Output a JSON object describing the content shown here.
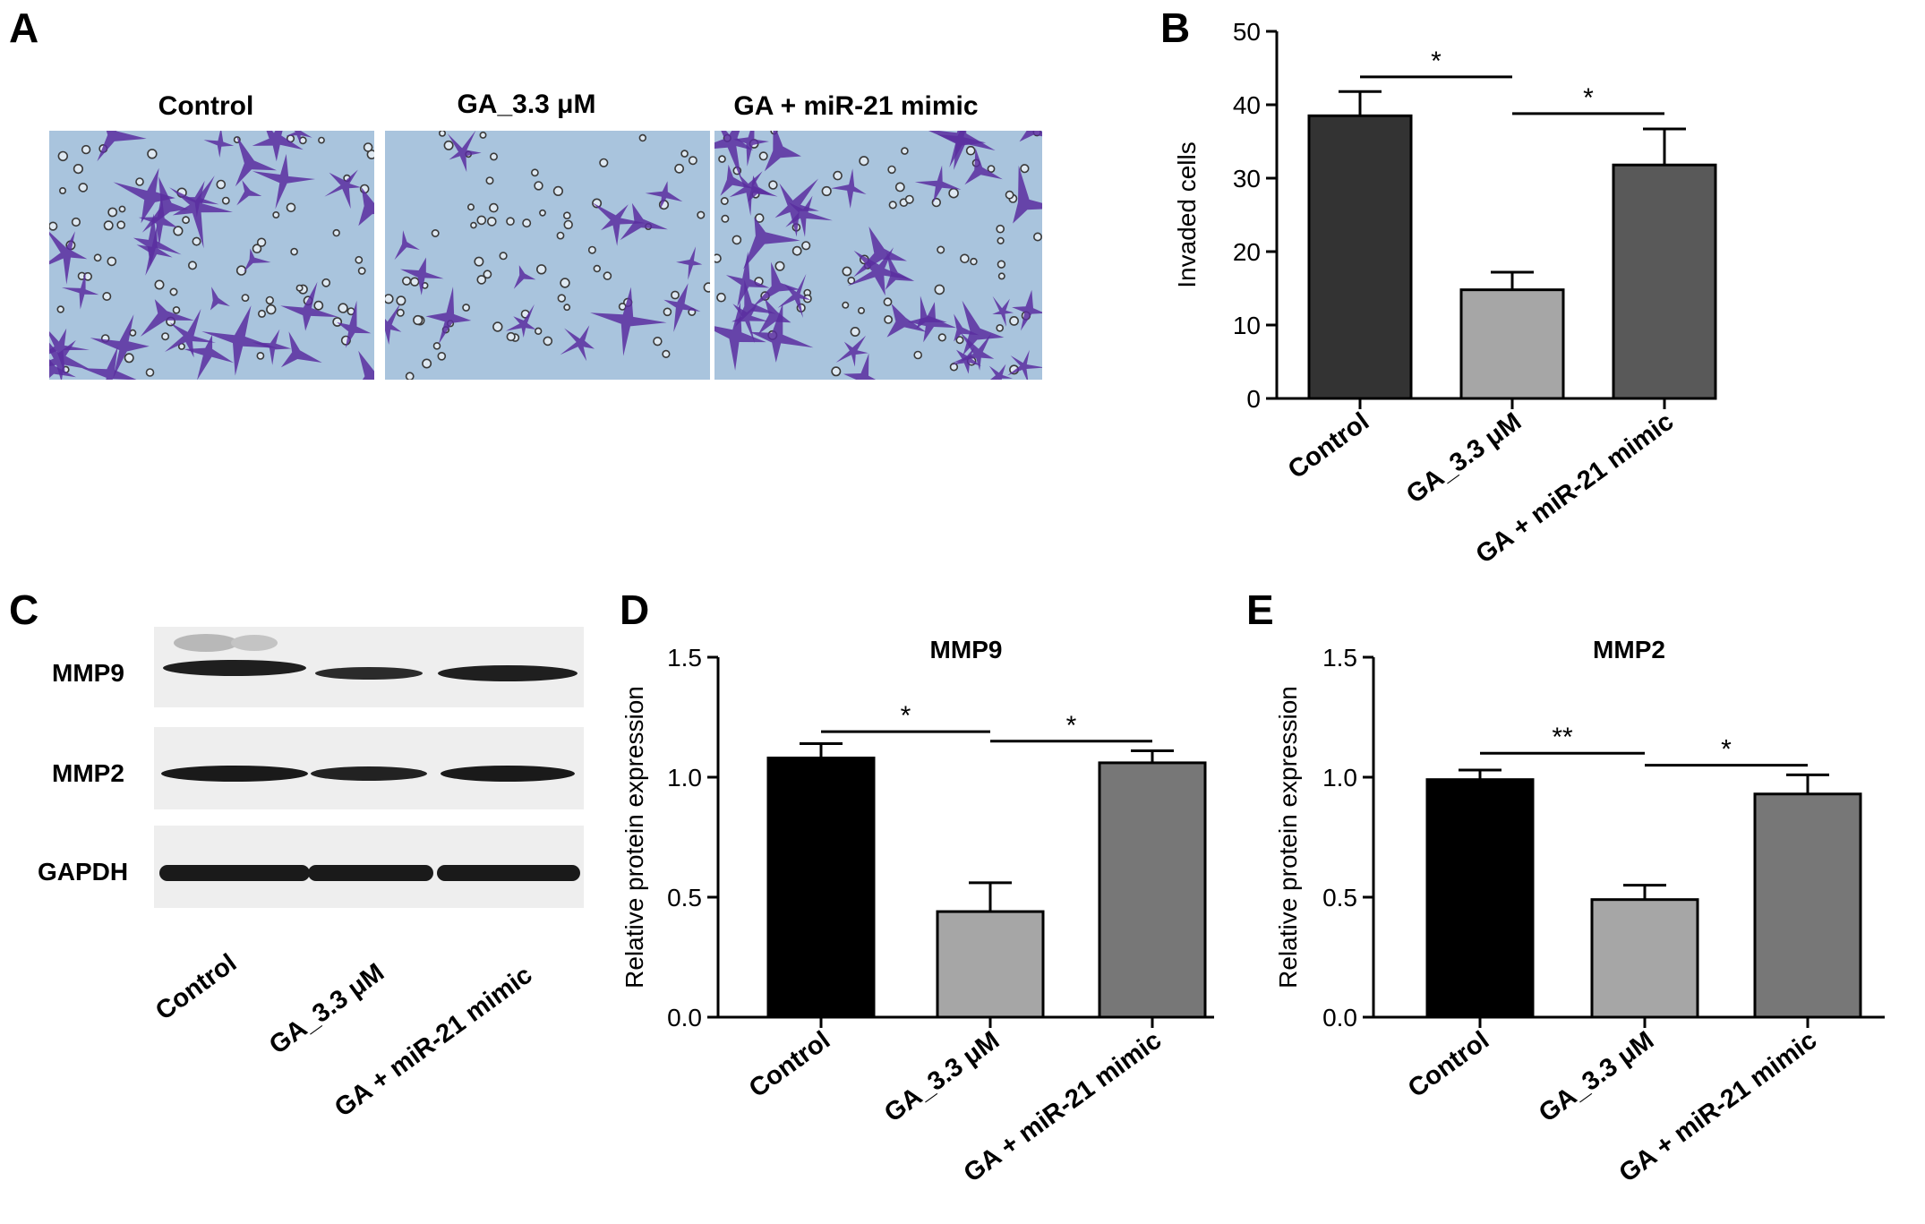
{
  "panels": {
    "a": "A",
    "b": "B",
    "c": "C",
    "d": "D",
    "e": "E"
  },
  "panel_a": {
    "conditions": [
      "Control",
      "GA_3.3 μM",
      "GA + miR-21 mimic"
    ]
  },
  "panel_c": {
    "proteins": [
      "MMP9",
      "MMP2",
      "GAPDH"
    ],
    "lanes": [
      "Control",
      "GA_3.3 μM",
      "GA + miR-21 mimic"
    ]
  },
  "colors": {
    "micro_background": "#a9c4dd",
    "cell_stain": "#5a2ea0",
    "band": "#1f1f1f"
  },
  "chart_data": [
    {
      "panel": "B",
      "type": "bar",
      "title": "",
      "ylabel": "Invaded cells",
      "categories": [
        "Control",
        "GA_3.3 μM",
        "GA + miR-21 mimic"
      ],
      "values": [
        38.5,
        14.8,
        31.8
      ],
      "errors": [
        3.3,
        2.4,
        4.9
      ],
      "colors": [
        "#333333",
        "#a6a6a6",
        "#595959"
      ],
      "ylim": [
        0,
        50
      ],
      "yticks": [
        "0",
        "10",
        "20",
        "30",
        "40",
        "50"
      ],
      "significance": [
        {
          "from": 0,
          "to": 1,
          "label": "*",
          "y": 43.8
        },
        {
          "from": 1,
          "to": 2,
          "label": "*",
          "y": 38.8
        }
      ]
    },
    {
      "panel": "D",
      "type": "bar",
      "title": "MMP9",
      "ylabel": "Relative protein expression",
      "categories": [
        "Control",
        "GA_3.3 μM",
        "GA + miR-21 mimic"
      ],
      "values": [
        1.08,
        0.44,
        1.06
      ],
      "errors": [
        0.06,
        0.12,
        0.05
      ],
      "colors": [
        "#000000",
        "#a6a6a6",
        "#777777"
      ],
      "ylim": [
        0,
        1.5
      ],
      "yticks": [
        "0.0",
        "0.5",
        "1.0",
        "1.5"
      ],
      "significance": [
        {
          "from": 0,
          "to": 1,
          "label": "*",
          "y": 1.19
        },
        {
          "from": 1,
          "to": 2,
          "label": "*",
          "y": 1.15
        }
      ]
    },
    {
      "panel": "E",
      "type": "bar",
      "title": "MMP2",
      "ylabel": "Relative protein expression",
      "categories": [
        "Control",
        "GA_3.3 μM",
        "GA + miR-21 mimic"
      ],
      "values": [
        0.99,
        0.49,
        0.93
      ],
      "errors": [
        0.04,
        0.06,
        0.08
      ],
      "colors": [
        "#000000",
        "#a6a6a6",
        "#777777"
      ],
      "ylim": [
        0,
        1.5
      ],
      "yticks": [
        "0.0",
        "0.5",
        "1.0",
        "1.5"
      ],
      "significance": [
        {
          "from": 0,
          "to": 1,
          "label": "**",
          "y": 1.1
        },
        {
          "from": 1,
          "to": 2,
          "label": "*",
          "y": 1.05
        }
      ]
    }
  ]
}
